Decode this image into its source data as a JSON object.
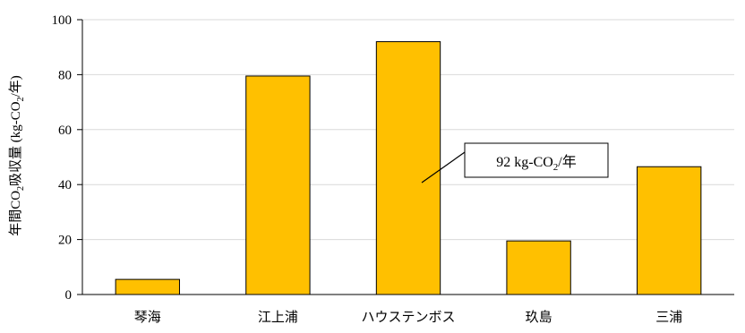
{
  "chart_data": {
    "type": "bar",
    "categories": [
      "琴海",
      "江上浦",
      "ハウステンボス",
      "玖島",
      "三浦"
    ],
    "values": [
      5.5,
      79.5,
      92,
      19.5,
      46.5
    ],
    "ylim": [
      0,
      100
    ],
    "yticks": [
      0,
      20,
      40,
      60,
      80,
      100
    ],
    "ylabel": {
      "prefix": "年間CO",
      "sub": "2",
      "middle": "吸収量 (kg-CO",
      "sub2": "2",
      "suffix": "/年)"
    },
    "xlabel": "",
    "grid": true,
    "bar_color": "#FFC000",
    "annotation": {
      "category": "ハウステンボス",
      "main": "92 kg-CO",
      "sub": "2",
      "suffix": "/年"
    }
  }
}
